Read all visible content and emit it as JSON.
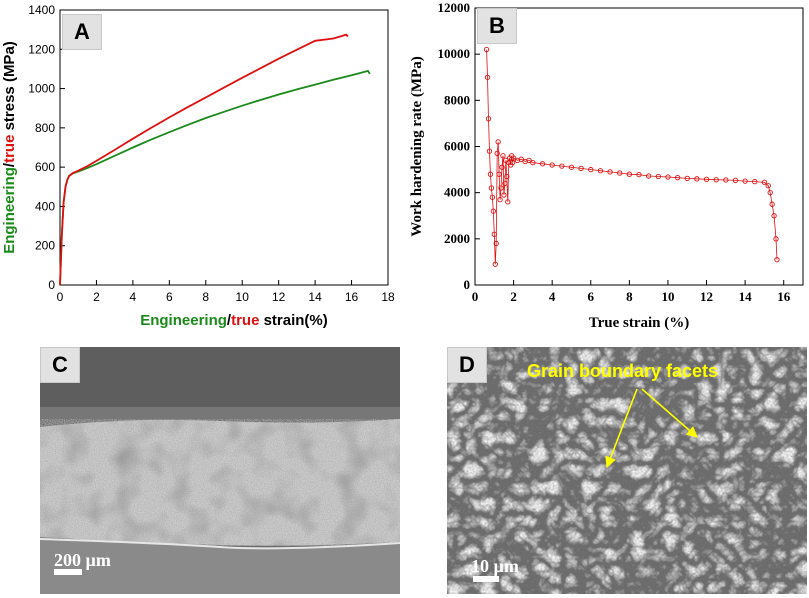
{
  "panels": {
    "a": {
      "letter": "A"
    },
    "b": {
      "letter": "B"
    },
    "c": {
      "letter": "C",
      "scale_text": "200 µm"
    },
    "d": {
      "letter": "D",
      "scale_text": "10 µm",
      "annotation": "Grain boundary facets"
    }
  },
  "chart_data": [
    {
      "type": "line",
      "ylabel_parts": [
        "Engineering",
        "/",
        "true",
        " stress (MPa)"
      ],
      "xlabel_parts": [
        "Engineering",
        "/",
        "true",
        " strain(%)"
      ],
      "xlim": [
        0,
        18
      ],
      "ylim": [
        0,
        1400
      ],
      "xticks": [
        0,
        2,
        4,
        6,
        8,
        10,
        12,
        14,
        16,
        18
      ],
      "yticks": [
        0,
        200,
        400,
        600,
        800,
        1000,
        1200,
        1400
      ],
      "colors": {
        "engineering": "#1a8a1a",
        "true": "#e01010"
      },
      "series": [
        {
          "key": "engineering",
          "x": [
            0,
            0.1,
            0.2,
            0.3,
            0.4,
            0.5,
            0.7,
            1.0,
            1.5,
            2,
            3,
            4,
            5,
            6,
            7,
            8,
            9,
            10,
            11,
            12,
            13,
            14,
            15,
            16,
            16.5,
            16.9,
            17.0
          ],
          "y": [
            0,
            250,
            420,
            500,
            535,
            555,
            568,
            578,
            595,
            615,
            658,
            700,
            740,
            778,
            815,
            850,
            882,
            913,
            942,
            970,
            996,
            1020,
            1045,
            1068,
            1080,
            1090,
            1075
          ]
        },
        {
          "key": "true",
          "x": [
            0,
            0.1,
            0.2,
            0.3,
            0.4,
            0.5,
            0.7,
            1.0,
            1.5,
            2,
            3,
            4,
            5,
            6,
            7,
            8,
            9,
            10,
            11,
            12,
            13,
            14,
            15,
            15.5,
            15.7,
            15.8
          ],
          "y": [
            0,
            250,
            420,
            500,
            535,
            555,
            570,
            582,
            605,
            632,
            688,
            745,
            800,
            853,
            905,
            955,
            1005,
            1055,
            1103,
            1152,
            1198,
            1243,
            1255,
            1268,
            1275,
            1265
          ]
        }
      ]
    },
    {
      "type": "scatter",
      "ylabel": "Work hardening rate (MPa)",
      "xlabel": "True strain (%)",
      "xlim": [
        0,
        17
      ],
      "ylim": [
        0,
        12000
      ],
      "xticks": [
        0,
        2,
        4,
        6,
        8,
        10,
        12,
        14,
        16
      ],
      "yticks": [
        0,
        2000,
        4000,
        6000,
        8000,
        10000,
        12000
      ],
      "color": "#e01010",
      "points": {
        "x": [
          0.6,
          0.65,
          0.7,
          0.75,
          0.8,
          0.85,
          0.9,
          0.95,
          1.0,
          1.05,
          1.1,
          1.15,
          1.2,
          1.25,
          1.3,
          1.35,
          1.4,
          1.45,
          1.5,
          1.55,
          1.6,
          1.65,
          1.7,
          1.75,
          1.8,
          1.85,
          1.9,
          1.95,
          2.0,
          2.2,
          2.4,
          2.6,
          2.8,
          3.0,
          3.5,
          4.0,
          4.5,
          5.0,
          5.5,
          6.0,
          6.5,
          7.0,
          7.5,
          8.0,
          8.5,
          9.0,
          9.5,
          10.0,
          10.5,
          11.0,
          11.5,
          12.0,
          12.5,
          13.0,
          13.5,
          14.0,
          14.5,
          15.0,
          15.2,
          15.3,
          15.4,
          15.5,
          15.6,
          15.65
        ],
        "y": [
          10200,
          9000,
          7200,
          5800,
          4800,
          4200,
          3800,
          3200,
          2200,
          900,
          1800,
          5700,
          6200,
          4800,
          3700,
          4200,
          5100,
          5600,
          3900,
          4400,
          5400,
          4700,
          3600,
          5300,
          5500,
          5200,
          5600,
          5300,
          5500,
          5400,
          5450,
          5350,
          5400,
          5300,
          5250,
          5200,
          5150,
          5100,
          5050,
          5000,
          4950,
          4900,
          4850,
          4800,
          4780,
          4720,
          4700,
          4680,
          4650,
          4620,
          4600,
          4580,
          4560,
          4550,
          4530,
          4500,
          4480,
          4450,
          4300,
          4000,
          3500,
          3000,
          2000,
          1100
        ]
      }
    }
  ]
}
